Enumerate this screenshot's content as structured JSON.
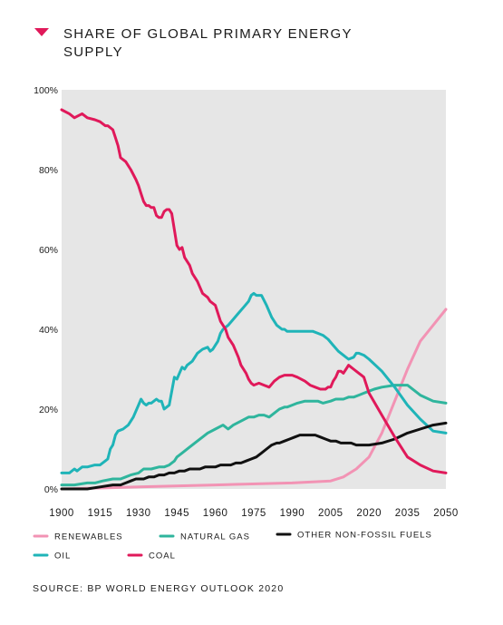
{
  "title": "SHARE OF GLOBAL PRIMARY ENERGY SUPPLY",
  "source": "SOURCE: BP WORLD ENERGY OUTLOOK 2020",
  "colors": {
    "renewables": "#f293b4",
    "natural_gas": "#2fb59d",
    "oil": "#1fb4b8",
    "coal": "#e0195a",
    "other": "#111111",
    "plot_bg": "#e6e6e6",
    "marker": "#e0195a"
  },
  "chart_data": {
    "type": "line",
    "title": "SHARE OF GLOBAL PRIMARY ENERGY SUPPLY",
    "xlim": [
      1900,
      2050
    ],
    "ylim": [
      0,
      100
    ],
    "xticks": [
      1900,
      1915,
      1930,
      1945,
      1960,
      1975,
      1990,
      2005,
      2020,
      2035,
      2050
    ],
    "yticks": [
      0,
      20,
      40,
      60,
      80,
      100
    ],
    "ytick_labels": [
      "0%",
      "20%",
      "40%",
      "60%",
      "80%",
      "100%"
    ],
    "grid": false,
    "legend_position": "bottom",
    "series": [
      {
        "key": "coal",
        "name": "COAL",
        "x": [
          1900,
          1903,
          1905,
          1908,
          1910,
          1913,
          1915,
          1917,
          1918,
          1920,
          1921,
          1922,
          1923,
          1925,
          1927,
          1929,
          1930,
          1931,
          1932,
          1933,
          1934,
          1935,
          1936,
          1937,
          1938,
          1939,
          1940,
          1941,
          1942,
          1943,
          1945,
          1946,
          1947,
          1948,
          1949,
          1950,
          1951,
          1953,
          1955,
          1957,
          1958,
          1960,
          1962,
          1964,
          1965,
          1967,
          1969,
          1970,
          1972,
          1973,
          1974,
          1975,
          1977,
          1979,
          1981,
          1983,
          1985,
          1987,
          1989,
          1990,
          1992,
          1995,
          1997,
          1999,
          2001,
          2003,
          2004,
          2005,
          2006,
          2007,
          2008,
          2009,
          2010,
          2011,
          2012,
          2013,
          2014,
          2016,
          2017,
          2018,
          2020,
          2025,
          2030,
          2035,
          2040,
          2045,
          2050
        ],
        "values": [
          95,
          94,
          93,
          94,
          93,
          92.5,
          92,
          91,
          91,
          90,
          88,
          86,
          83,
          82,
          80,
          77.5,
          76,
          74,
          72,
          71,
          71,
          70.5,
          70.5,
          68.5,
          68,
          68,
          69.5,
          70,
          70,
          69,
          61,
          60,
          60.5,
          58,
          57,
          56,
          54,
          52,
          49,
          48,
          47,
          46,
          42,
          40,
          38,
          36,
          33,
          31,
          29,
          27.5,
          26.5,
          26,
          26.5,
          26,
          25.5,
          27,
          28,
          28.5,
          28.5,
          28.5,
          28,
          27,
          26,
          25.5,
          25,
          25,
          25.5,
          25.5,
          27,
          28,
          29.5,
          29.5,
          29,
          30,
          31,
          30.5,
          30,
          29,
          28.5,
          28,
          24,
          18.5,
          13,
          8,
          6,
          4.5,
          4
        ]
      },
      {
        "key": "oil",
        "name": "OIL",
        "x": [
          1900,
          1903,
          1905,
          1906,
          1907,
          1908,
          1910,
          1913,
          1915,
          1917,
          1918,
          1919,
          1920,
          1921,
          1922,
          1924,
          1926,
          1928,
          1930,
          1931,
          1932,
          1933,
          1934,
          1935,
          1936,
          1937,
          1938,
          1939,
          1940,
          1941,
          1942,
          1944,
          1945,
          1946,
          1947,
          1948,
          1949,
          1950,
          1951,
          1952,
          1953,
          1955,
          1957,
          1958,
          1959,
          1960,
          1961,
          1962,
          1963,
          1964,
          1965,
          1967,
          1969,
          1971,
          1973,
          1974,
          1975,
          1976,
          1977,
          1978,
          1980,
          1982,
          1984,
          1985,
          1986,
          1987,
          1988,
          1989,
          1990,
          1992,
          1994,
          1996,
          1998,
          2000,
          2002,
          2004,
          2006,
          2008,
          2010,
          2012,
          2014,
          2015,
          2016,
          2018,
          2020,
          2025,
          2030,
          2035,
          2040,
          2045,
          2050
        ],
        "values": [
          4,
          4,
          5,
          4.5,
          5,
          5.5,
          5.5,
          6,
          6,
          7,
          7.5,
          10,
          11,
          13.5,
          14.5,
          15,
          16,
          18,
          21,
          22.5,
          21.5,
          21,
          21.5,
          21.5,
          22,
          22.5,
          22,
          22,
          20,
          20.5,
          21,
          28,
          27.5,
          29,
          30.5,
          30,
          31,
          31.5,
          32,
          33,
          34,
          35,
          35.5,
          34.5,
          35,
          36,
          37,
          39,
          40,
          40.5,
          41,
          42.5,
          44,
          45.5,
          47,
          48.5,
          49,
          48.5,
          48.5,
          48.5,
          46,
          43,
          41,
          40.5,
          40,
          40,
          39.5,
          39.5,
          39.5,
          39.5,
          39.5,
          39.5,
          39.5,
          39,
          38.5,
          37.5,
          36,
          34.5,
          33.5,
          32.5,
          33,
          34,
          34,
          33.5,
          32.5,
          29.5,
          25.5,
          21,
          17.5,
          14.5,
          14
        ]
      },
      {
        "key": "natural_gas",
        "name": "NATURAL GAS",
        "x": [
          1900,
          1905,
          1910,
          1913,
          1916,
          1920,
          1923,
          1925,
          1927,
          1930,
          1932,
          1935,
          1938,
          1940,
          1942,
          1944,
          1945,
          1947,
          1950,
          1953,
          1955,
          1957,
          1960,
          1963,
          1965,
          1967,
          1970,
          1973,
          1975,
          1977,
          1979,
          1981,
          1983,
          1985,
          1987,
          1988,
          1990,
          1992,
          1995,
          1998,
          2000,
          2002,
          2005,
          2007,
          2010,
          2012,
          2014,
          2016,
          2018,
          2020,
          2022,
          2025,
          2030,
          2035,
          2040,
          2045,
          2050
        ],
        "values": [
          1,
          1,
          1.5,
          1.5,
          2,
          2.5,
          2.5,
          3,
          3.5,
          4,
          5,
          5,
          5.5,
          5.5,
          6,
          7,
          8,
          9,
          10.5,
          12,
          13,
          14,
          15,
          16,
          15,
          16,
          17,
          18,
          18,
          18.5,
          18.5,
          18,
          19,
          20,
          20.5,
          20.5,
          21,
          21.5,
          22,
          22,
          22,
          21.5,
          22,
          22.5,
          22.5,
          23,
          23,
          23.5,
          24,
          24.5,
          25,
          25.5,
          26,
          26,
          23.5,
          22,
          21.5
        ]
      },
      {
        "key": "other",
        "name": "OTHER NON-FOSSIL FUELS",
        "x": [
          1900,
          1910,
          1915,
          1920,
          1923,
          1925,
          1927,
          1929,
          1930,
          1932,
          1934,
          1936,
          1938,
          1940,
          1942,
          1944,
          1946,
          1948,
          1950,
          1952,
          1954,
          1956,
          1958,
          1960,
          1962,
          1964,
          1966,
          1968,
          1970,
          1972,
          1974,
          1976,
          1978,
          1980,
          1982,
          1984,
          1985,
          1987,
          1989,
          1991,
          1993,
          1995,
          1997,
          1999,
          2001,
          2003,
          2005,
          2007,
          2009,
          2011,
          2013,
          2015,
          2017,
          2020,
          2025,
          2030,
          2035,
          2040,
          2045,
          2050
        ],
        "values": [
          0,
          0,
          0.5,
          1,
          1,
          1.5,
          2,
          2.5,
          2.5,
          2.5,
          3,
          3,
          3.5,
          3.5,
          4,
          4,
          4.5,
          4.5,
          5,
          5,
          5,
          5.5,
          5.5,
          5.5,
          6,
          6,
          6,
          6.5,
          6.5,
          7,
          7.5,
          8,
          9,
          10,
          11,
          11.5,
          11.5,
          12,
          12.5,
          13,
          13.5,
          13.5,
          13.5,
          13.5,
          13,
          12.5,
          12,
          12,
          11.5,
          11.5,
          11.5,
          11,
          11,
          11,
          11.5,
          12.5,
          14,
          15,
          16,
          16.5
        ]
      },
      {
        "key": "renewables",
        "name": "RENEWABLES",
        "x": [
          1900,
          1930,
          1960,
          1990,
          2005,
          2010,
          2015,
          2020,
          2025,
          2030,
          2035,
          2040,
          2045,
          2050
        ],
        "values": [
          0,
          0.5,
          1,
          1.5,
          2,
          3,
          5,
          8,
          14,
          22,
          30,
          37,
          41,
          45
        ]
      }
    ],
    "legend": [
      {
        "key": "renewables",
        "label": "RENEWABLES"
      },
      {
        "key": "natural_gas",
        "label": "NATURAL GAS"
      },
      {
        "key": "other",
        "label": "OTHER NON-FOSSIL FUELS"
      },
      {
        "key": "oil",
        "label": "OIL"
      },
      {
        "key": "coal",
        "label": "COAL"
      }
    ]
  }
}
